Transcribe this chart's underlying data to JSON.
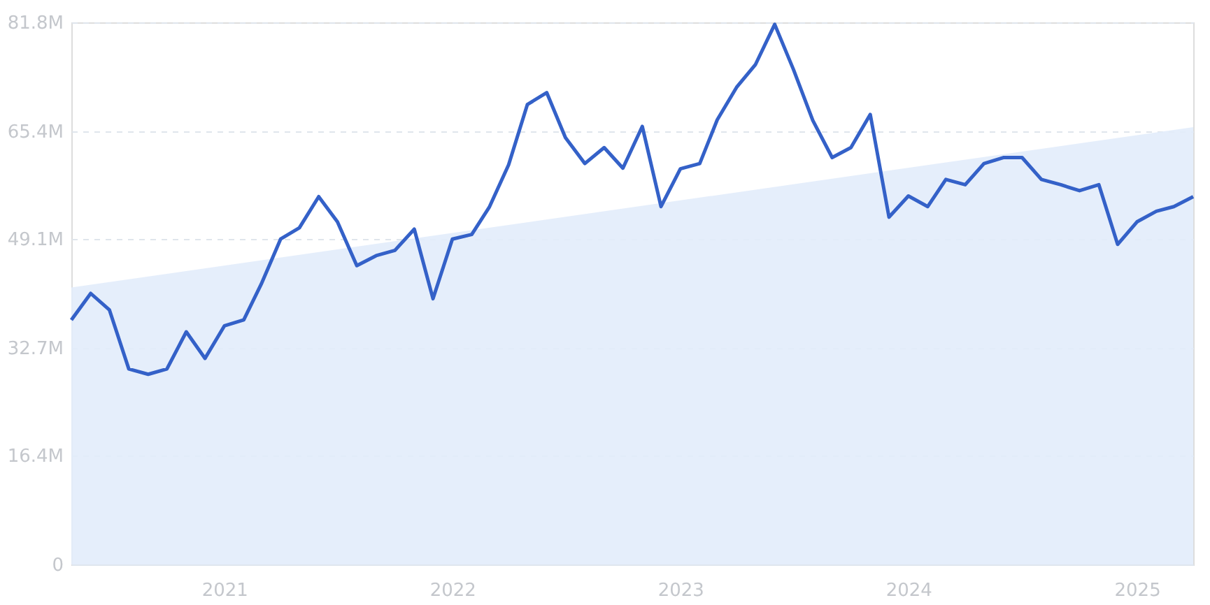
{
  "chart_data": {
    "type": "line",
    "x": [
      "2020-05",
      "2020-06",
      "2020-07",
      "2020-08",
      "2020-09",
      "2020-10",
      "2020-11",
      "2020-12",
      "2021-01",
      "2021-02",
      "2021-03",
      "2021-04",
      "2021-05",
      "2021-06",
      "2021-07",
      "2021-08",
      "2021-09",
      "2021-10",
      "2021-11",
      "2021-12",
      "2022-01",
      "2022-02",
      "2022-03",
      "2022-04",
      "2022-05",
      "2022-06",
      "2022-07",
      "2022-08",
      "2022-09",
      "2022-10",
      "2022-11",
      "2022-12",
      "2023-01",
      "2023-02",
      "2023-03",
      "2023-04",
      "2023-05",
      "2023-06",
      "2023-07",
      "2023-08",
      "2023-09",
      "2023-10",
      "2023-11",
      "2023-12",
      "2024-01",
      "2024-02",
      "2024-03",
      "2024-04",
      "2024-05",
      "2024-06",
      "2024-07",
      "2024-08",
      "2024-09",
      "2024-10",
      "2024-11",
      "2024-12",
      "2025-01",
      "2025-02",
      "2025-03",
      "2025-04"
    ],
    "series": [
      {
        "type": "area",
        "color": "#e2ecfb",
        "x": [
          "2020-05",
          "2025-04"
        ],
        "values": [
          41.8,
          66.0
        ]
      },
      {
        "color": "#3461c8",
        "values": [
          36.9,
          40.9,
          38.4,
          29.5,
          28.7,
          29.5,
          35.1,
          31.1,
          36.0,
          36.9,
          42.3,
          49.1,
          50.8,
          55.5,
          51.7,
          45.1,
          46.6,
          47.4,
          50.6,
          40.1,
          49.1,
          49.8,
          53.9,
          60.3,
          69.4,
          71.2,
          64.4,
          60.5,
          62.9,
          59.8,
          66.1,
          54.0,
          59.7,
          60.5,
          67.1,
          72.0,
          75.4,
          81.5,
          74.7,
          67.0,
          61.4,
          62.9,
          67.9,
          52.4,
          55.6,
          54.0,
          58.1,
          57.3,
          60.5,
          61.4,
          61.4,
          58.1,
          57.3,
          56.4,
          57.3,
          48.3,
          51.7,
          53.3,
          54.0,
          55.5
        ]
      }
    ],
    "xlim": [
      "2020-05",
      "2025-04"
    ],
    "xticks": [
      "2021",
      "2022",
      "2023",
      "2024",
      "2025"
    ],
    "ylim": [
      0,
      81.8
    ],
    "yticks": [
      {
        "value": 0,
        "label": "0"
      },
      {
        "value": 16.4,
        "label": "16.4M"
      },
      {
        "value": 32.7,
        "label": "32.7M"
      },
      {
        "value": 49.1,
        "label": "49.1M"
      },
      {
        "value": 65.4,
        "label": "65.4M"
      },
      {
        "value": 81.8,
        "label": "81.8M"
      }
    ],
    "grid": "y",
    "legend": false,
    "line_style": "solid",
    "marker": "none"
  }
}
